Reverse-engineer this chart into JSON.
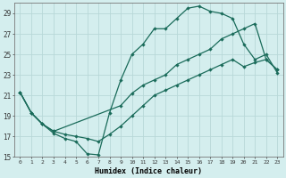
{
  "xlabel": "Humidex (Indice chaleur)",
  "bg_color": "#d4eeee",
  "grid_color": "#b8d8d8",
  "line_color": "#1a6b5a",
  "xlim": [
    -0.5,
    23.5
  ],
  "ylim": [
    15,
    30
  ],
  "xticks": [
    0,
    1,
    2,
    3,
    4,
    5,
    6,
    7,
    8,
    9,
    10,
    11,
    12,
    13,
    14,
    15,
    16,
    17,
    18,
    19,
    20,
    21,
    22,
    23
  ],
  "yticks": [
    15,
    17,
    19,
    21,
    23,
    25,
    27,
    29
  ],
  "line1_x": [
    0,
    1,
    2,
    3,
    4,
    5,
    6,
    7,
    8,
    9,
    10,
    11,
    12,
    13,
    14,
    15,
    16,
    17,
    18,
    19,
    20,
    21,
    22,
    23
  ],
  "line1_y": [
    21.3,
    19.3,
    18.2,
    17.3,
    16.8,
    16.5,
    15.3,
    15.2,
    19.3,
    22.5,
    25.0,
    26.0,
    27.5,
    27.5,
    28.5,
    29.5,
    29.7,
    29.2,
    29.0,
    28.5,
    26.0,
    24.5,
    25.0,
    23.2
  ],
  "line2_x": [
    0,
    1,
    2,
    3,
    9,
    10,
    11,
    12,
    13,
    14,
    15,
    16,
    17,
    18,
    19,
    20,
    21,
    22,
    23
  ],
  "line2_y": [
    21.3,
    19.3,
    18.2,
    17.5,
    20.0,
    21.2,
    22.0,
    22.5,
    23.0,
    24.0,
    24.5,
    25.0,
    25.5,
    26.5,
    27.0,
    27.5,
    28.0,
    24.5,
    23.5
  ],
  "line3_x": [
    0,
    1,
    2,
    3,
    4,
    5,
    6,
    7,
    8,
    9,
    10,
    11,
    12,
    13,
    14,
    15,
    16,
    17,
    18,
    19,
    20,
    21,
    22,
    23
  ],
  "line3_y": [
    21.3,
    19.3,
    18.2,
    17.5,
    17.2,
    17.0,
    16.8,
    16.5,
    17.2,
    18.0,
    19.0,
    20.0,
    21.0,
    21.5,
    22.0,
    22.5,
    23.0,
    23.5,
    24.0,
    24.5,
    23.8,
    24.2,
    24.5,
    23.5
  ]
}
